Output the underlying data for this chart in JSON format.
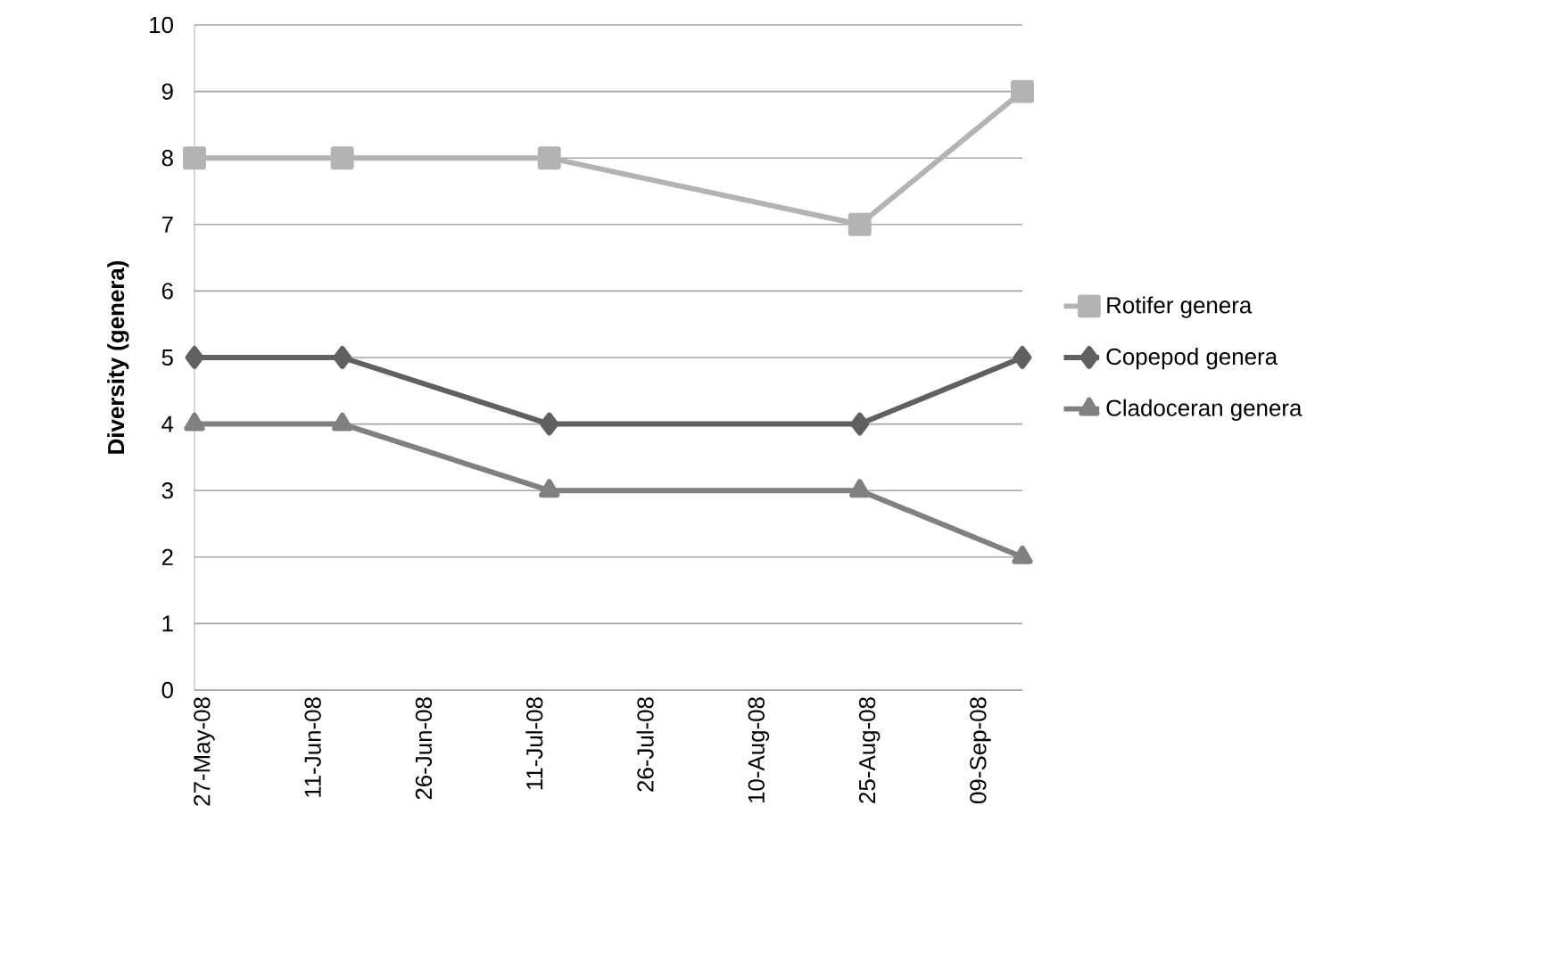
{
  "chart_data": {
    "type": "line",
    "ylabel": "Diversity (genera)",
    "x": [
      "2008-05-27",
      "2008-06-16",
      "2008-07-14",
      "2008-08-25",
      "2008-09-16"
    ],
    "xlim": [
      "2008-05-27",
      "2008-09-16"
    ],
    "xticks": [
      {
        "value": "2008-05-27",
        "label": "27-May-08"
      },
      {
        "value": "2008-06-11",
        "label": "11-Jun-08"
      },
      {
        "value": "2008-06-26",
        "label": "26-Jun-08"
      },
      {
        "value": "2008-07-11",
        "label": "11-Jul-08"
      },
      {
        "value": "2008-07-26",
        "label": "26-Jul-08"
      },
      {
        "value": "2008-08-10",
        "label": "10-Aug-08"
      },
      {
        "value": "2008-08-25",
        "label": "25-Aug-08"
      },
      {
        "value": "2008-09-09",
        "label": "09-Sep-08"
      }
    ],
    "ylim": [
      0,
      10
    ],
    "yticks": [
      0,
      1,
      2,
      3,
      4,
      5,
      6,
      7,
      8,
      9,
      10
    ],
    "grid": "y",
    "legend": "right",
    "line_style": "solid",
    "series": [
      {
        "name": "Rotifer genera",
        "color": "#b3b3b3",
        "marker": "square",
        "values": [
          8,
          8,
          8,
          7,
          9
        ]
      },
      {
        "name": "Copepod genera",
        "color": "#606060",
        "marker": "diamond",
        "values": [
          5,
          5,
          4,
          4,
          5
        ]
      },
      {
        "name": "Cladoceran genera",
        "color": "#808080",
        "marker": "triangle",
        "values": [
          4,
          4,
          3,
          3,
          2
        ]
      }
    ]
  }
}
